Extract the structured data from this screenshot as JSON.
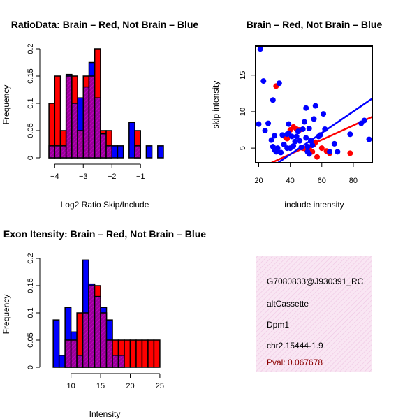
{
  "charts": {
    "ratio_hist": {
      "type": "bar",
      "title": "RatioData: Brain – Red, Not Brain – Blue",
      "xlabel": "Log2 Ratio Skip/Include",
      "ylabel": "Frequency",
      "xlim": [
        -4.3,
        -0.2
      ],
      "ylim": [
        0,
        0.2
      ],
      "xticks": [
        -4,
        -3,
        -2,
        -1
      ],
      "yticks": [
        0,
        0.05,
        0.1,
        0.15,
        0.2
      ],
      "bin_width": 0.2,
      "bin_start": -4.2,
      "series": [
        {
          "name": "Brain",
          "color": "#ff0000",
          "values": [
            0.1,
            0.15,
            0.05,
            0.15,
            0.15,
            0.05,
            0.15,
            0.15,
            0.2,
            0.05,
            0.05,
            0,
            0,
            0,
            0,
            0.05,
            0,
            0,
            0,
            0
          ]
        },
        {
          "name": "Not Brain",
          "color": "#0000ff",
          "values": [
            0.022,
            0.022,
            0.022,
            0.153,
            0.1,
            0.11,
            0.13,
            0.175,
            0.11,
            0.044,
            0.022,
            0.022,
            0.022,
            0,
            0.065,
            0.022,
            0,
            0.022,
            0,
            0.022
          ]
        }
      ]
    },
    "scatter": {
      "type": "scatter",
      "title": "Brain – Red, Not Brain – Blue",
      "xlabel": "include intensity",
      "ylabel": "skip intensity",
      "xlim": [
        18,
        92
      ],
      "ylim": [
        3.0,
        19.0
      ],
      "xticks": [
        20,
        40,
        60,
        80
      ],
      "yticks": [
        5,
        10,
        15
      ],
      "series": [
        {
          "name": "Brain",
          "color": "#ff0000",
          "points": [
            [
              31,
              13.5
            ],
            [
              37,
              6.5
            ],
            [
              38,
              6.3
            ],
            [
              40,
              7.5
            ],
            [
              42,
              7.9
            ],
            [
              44,
              7.6
            ],
            [
              46,
              7.5
            ],
            [
              48,
              5.0
            ],
            [
              50,
              4.8
            ],
            [
              52,
              5.0
            ],
            [
              54,
              4.5
            ],
            [
              55,
              5.5
            ],
            [
              56,
              5.8
            ],
            [
              57,
              3.8
            ],
            [
              60,
              5.0
            ],
            [
              63,
              4.6
            ],
            [
              65,
              4.3
            ],
            [
              78,
              4.3
            ]
          ],
          "fit": [
            [
              18,
              2.0
            ],
            [
              92,
              9.3
            ]
          ]
        },
        {
          "name": "Not Brain",
          "color": "#0000ff",
          "points": [
            [
              20,
              8.3
            ],
            [
              21,
              18.6
            ],
            [
              23,
              14.2
            ],
            [
              24,
              7.4
            ],
            [
              26,
              8.4
            ],
            [
              28,
              6.1
            ],
            [
              29,
              5.2
            ],
            [
              29,
              11.6
            ],
            [
              30,
              4.8
            ],
            [
              30,
              6.7
            ],
            [
              31,
              4.5
            ],
            [
              32,
              5.0
            ],
            [
              33,
              13.9
            ],
            [
              34,
              4.4
            ],
            [
              35,
              6.8
            ],
            [
              36,
              5.5
            ],
            [
              38,
              5.0
            ],
            [
              38,
              6.9
            ],
            [
              39,
              7.0
            ],
            [
              39,
              8.3
            ],
            [
              40,
              5.0
            ],
            [
              41,
              6.6
            ],
            [
              42,
              5.3
            ],
            [
              43,
              5.9
            ],
            [
              44,
              6.6
            ],
            [
              45,
              7.3
            ],
            [
              46,
              6.0
            ],
            [
              47,
              5.1
            ],
            [
              48,
              7.6
            ],
            [
              49,
              8.6
            ],
            [
              50,
              6.4
            ],
            [
              50,
              10.5
            ],
            [
              51,
              5.2
            ],
            [
              51,
              4.5
            ],
            [
              52,
              7.7
            ],
            [
              52,
              4.2
            ],
            [
              53,
              6.0
            ],
            [
              54,
              5.4
            ],
            [
              55,
              9.0
            ],
            [
              56,
              10.8
            ],
            [
              58,
              6.6
            ],
            [
              59,
              6.8
            ],
            [
              61,
              9.7
            ],
            [
              62,
              7.6
            ],
            [
              65,
              4.5
            ],
            [
              68,
              5.6
            ],
            [
              70,
              4.5
            ],
            [
              78,
              6.9
            ],
            [
              85,
              8.4
            ],
            [
              87,
              8.8
            ],
            [
              90,
              6.2
            ]
          ],
          "fit": [
            [
              18,
              0.9
            ],
            [
              92,
              11.8
            ]
          ]
        }
      ]
    },
    "intensity_hist": {
      "type": "bar",
      "title": "Exon Itensity: Brain – Red, Not Brain – Blue",
      "xlabel": "Intensity",
      "ylabel": "Frequency",
      "xlim": [
        5.8,
        25.6
      ],
      "ylim": [
        0,
        0.2
      ],
      "xticks": [
        10,
        15,
        20,
        25
      ],
      "yticks": [
        0,
        0.05,
        0.1,
        0.15,
        0.2
      ],
      "bin_width": 1,
      "bin_start": 7,
      "series": [
        {
          "name": "Brain",
          "color": "#ff0000",
          "values": [
            0,
            0,
            0.05,
            0.05,
            0.1,
            0.1,
            0.15,
            0.15,
            0.1,
            0.05,
            0.05,
            0.05,
            0.05,
            0.05,
            0.05,
            0.05,
            0.05,
            0.05
          ]
        },
        {
          "name": "Not Brain",
          "color": "#0000ff",
          "values": [
            0.087,
            0.022,
            0.11,
            0.065,
            0.022,
            0.197,
            0.153,
            0.13,
            0.11,
            0.087,
            0.022,
            0.022,
            0,
            0,
            0,
            0,
            0,
            0
          ]
        }
      ]
    }
  },
  "info_panel": {
    "id": "G7080833@J930391_RC",
    "event_type": "altCassette",
    "gene": "Dpm1",
    "location": "chr2.15444-1.9",
    "pval": "Pval: 0.067678"
  },
  "colors": {
    "brain": "#ff0000",
    "not_brain": "#0000ff",
    "overlap": "#990099",
    "pval_text": "#8b0000",
    "info_bg": "#f9dff0"
  }
}
